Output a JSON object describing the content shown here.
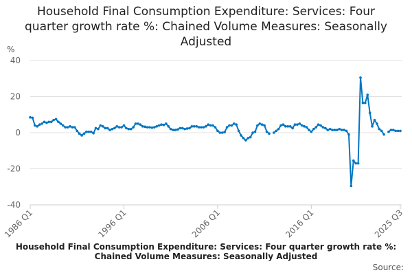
{
  "chart_data": {
    "type": "line",
    "title": "Household Final Consumption Expenditure: Services: Four quarter growth rate %: Chained Volume Measures: Seasonally Adjusted",
    "ylabel": "%",
    "xlabel": "",
    "ylim": [
      -40,
      40
    ],
    "yticks": [
      40,
      20,
      0,
      -20,
      -40
    ],
    "xticks": [
      {
        "label": "1986 Q1",
        "index": 0
      },
      {
        "label": "1996 Q1",
        "index": 40
      },
      {
        "label": "2006 Q1",
        "index": 80
      },
      {
        "label": "2016 Q1",
        "index": 120
      },
      {
        "label": "2025 Q3",
        "index": 158
      }
    ],
    "x_start": "1986 Q1",
    "x_end": "2025 Q3",
    "grid": true,
    "series": [
      {
        "name": "Household Final Consumption Expenditure: Services: Four quarter growth rate %: Chained Volume Measures: Seasonally Adjusted",
        "color": "#0075c2",
        "values": [
          8.5,
          8.2,
          4,
          3.5,
          4.5,
          5,
          6,
          5.5,
          6,
          6,
          7,
          7.5,
          6,
          5,
          4,
          3,
          3,
          3.5,
          3,
          3,
          1,
          -0.5,
          -1.5,
          -0.5,
          0.5,
          0.5,
          0.5,
          -0.3,
          2.5,
          2,
          4,
          3.5,
          2.5,
          2.5,
          1.5,
          2,
          2.5,
          3.5,
          3,
          3,
          4,
          2.5,
          2,
          2,
          3,
          5,
          5,
          4.5,
          3.5,
          3.3,
          3,
          3,
          2.8,
          3,
          3.5,
          4,
          4.5,
          4.3,
          5,
          3.5,
          2,
          1.5,
          1.5,
          1.8,
          2.5,
          2.5,
          2,
          2.3,
          2.5,
          3.5,
          3.5,
          3.5,
          3,
          3,
          3,
          3.5,
          4.5,
          4,
          4,
          3,
          1,
          0,
          0,
          0.3,
          3,
          4,
          4,
          5,
          4.5,
          1,
          -1.5,
          -3,
          -4.2,
          -3,
          -2.5,
          0,
          0.5,
          4,
          5,
          4.5,
          4,
          0.5,
          -0.5,
          null,
          0,
          1,
          2,
          4,
          4.5,
          3.5,
          3.5,
          3.5,
          2.5,
          4.5,
          4.5,
          5,
          4,
          3.5,
          3,
          1.5,
          0.5,
          2,
          3,
          4.5,
          4,
          3,
          2.5,
          1.5,
          2,
          1.5,
          1.5,
          1.5,
          2,
          1.5,
          1.5,
          1,
          -1,
          -29.5,
          -15.5,
          -17,
          -17,
          30.5,
          16.5,
          16.5,
          21,
          11,
          3.5,
          7,
          5,
          2,
          1,
          -1,
          null,
          0.5,
          1.5,
          1.5,
          1,
          1,
          1
        ]
      }
    ],
    "footer_title": "Household Final Consumption Expenditure: Services: Four quarter growth rate %: Chained Volume Measures: Seasonally Adjusted",
    "source_label": "Source:"
  }
}
